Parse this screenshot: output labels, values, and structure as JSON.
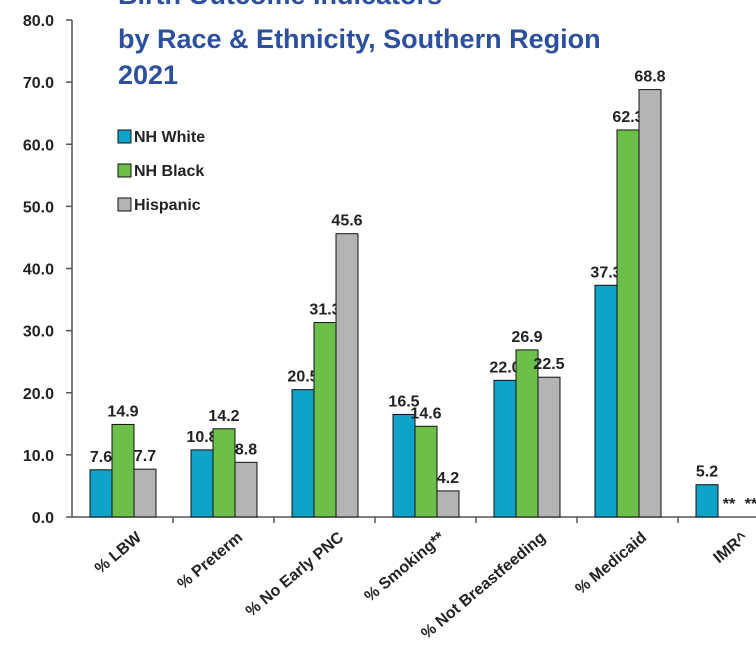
{
  "chart_data": {
    "type": "bar",
    "title": [
      "Birth Outcome Indicators",
      "by Race & Ethnicity, Southern Region",
      "2021"
    ],
    "categories": [
      "% LBW",
      "% Preterm",
      "% No Early PNC",
      "% Smoking**",
      "% Not Breastfeeding",
      "% Medicaid",
      "IMR^"
    ],
    "series": [
      {
        "name": "NH White",
        "color": "#0fa3c9",
        "values": [
          7.6,
          10.8,
          20.5,
          16.5,
          22.0,
          37.3,
          5.2
        ],
        "value_labels": [
          "7.6",
          "10.8",
          "20.5",
          "16.5",
          "22.0",
          "37.3",
          "5.2"
        ]
      },
      {
        "name": "NH Black",
        "color": "#6cc04a",
        "values": [
          14.9,
          14.2,
          31.3,
          14.6,
          26.9,
          62.3,
          null
        ],
        "value_labels": [
          "14.9",
          "14.2",
          "31.3",
          "14.6",
          "26.9",
          "62.3",
          "**"
        ]
      },
      {
        "name": "Hispanic",
        "color": "#b4b4b4",
        "values": [
          7.7,
          8.8,
          45.6,
          4.2,
          22.5,
          68.8,
          null
        ],
        "value_labels": [
          "7.7",
          "8.8",
          "45.6",
          "4.2",
          "22.5",
          "68.8",
          "**"
        ]
      }
    ],
    "ylim": [
      0,
      80
    ],
    "yticks": [
      {
        "value": 0,
        "label": "0.0"
      },
      {
        "value": 10,
        "label": "10.0"
      },
      {
        "value": 20,
        "label": "20.0"
      },
      {
        "value": 30,
        "label": "30.0"
      },
      {
        "value": 40,
        "label": "40.0"
      },
      {
        "value": 50,
        "label": "50.0"
      },
      {
        "value": 60,
        "label": "60.0"
      },
      {
        "value": 70,
        "label": "70.0"
      },
      {
        "value": 80,
        "label": "80.0"
      }
    ],
    "legend": "upper-left",
    "grid": false
  }
}
